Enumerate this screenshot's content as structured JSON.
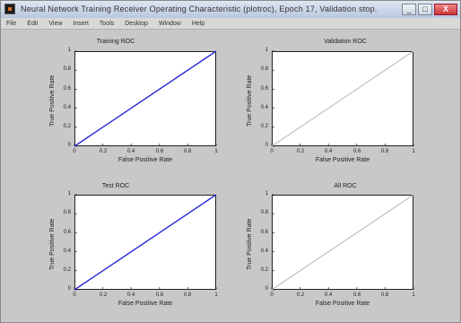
{
  "window": {
    "title": "Neural Network Training Receiver Operating Characteristic (plotroc), Epoch 17, Validation stop.",
    "controls": {
      "minimize": "_",
      "maximize": "□",
      "close": "X"
    }
  },
  "menubar": {
    "items": [
      "File",
      "Edit",
      "View",
      "Insert",
      "Tools",
      "Desktop",
      "Window",
      "Help"
    ]
  },
  "plots": [
    {
      "title": "Training ROC",
      "xlabel": "False Positive Rate",
      "ylabel": "True Positive Rate"
    },
    {
      "title": "Validation ROC",
      "xlabel": "False Positive Rate",
      "ylabel": "True Positive Rate"
    },
    {
      "title": "Test ROC",
      "xlabel": "False Positive Rate",
      "ylabel": "True Positive Rate"
    },
    {
      "title": "All ROC",
      "xlabel": "False Positive Rate",
      "ylabel": "True Positive Rate"
    }
  ],
  "ticks": {
    "x": [
      "0",
      "0.2",
      "0.4",
      "0.6",
      "0.8",
      "1"
    ],
    "y": [
      "0",
      "0.2",
      "0.4",
      "0.6",
      "0.8",
      "1"
    ]
  },
  "colors": {
    "roc_line": "#2b2bd6",
    "diagonal": "#b8b8b8"
  },
  "chart_data": [
    {
      "type": "line",
      "title": "Training ROC",
      "xlabel": "False Positive Rate",
      "ylabel": "True Positive Rate",
      "xlim": [
        0,
        1
      ],
      "ylim": [
        0,
        1
      ],
      "series": [
        {
          "x": [
            0,
            1
          ],
          "y": [
            0,
            1
          ]
        }
      ]
    },
    {
      "type": "line",
      "title": "Validation ROC",
      "xlabel": "False Positive Rate",
      "ylabel": "True Positive Rate",
      "xlim": [
        0,
        1
      ],
      "ylim": [
        0,
        1
      ],
      "series": [
        {
          "x": [
            0,
            1
          ],
          "y": [
            0,
            1
          ]
        }
      ]
    },
    {
      "type": "line",
      "title": "Test ROC",
      "xlabel": "False Positive Rate",
      "ylabel": "True Positive Rate",
      "xlim": [
        0,
        1
      ],
      "ylim": [
        0,
        1
      ],
      "series": [
        {
          "x": [
            0,
            1
          ],
          "y": [
            0,
            1
          ]
        }
      ]
    },
    {
      "type": "line",
      "title": "All ROC",
      "xlabel": "False Positive Rate",
      "ylabel": "True Positive Rate",
      "xlim": [
        0,
        1
      ],
      "ylim": [
        0,
        1
      ],
      "series": [
        {
          "x": [
            0,
            1
          ],
          "y": [
            0,
            1
          ]
        }
      ]
    }
  ]
}
